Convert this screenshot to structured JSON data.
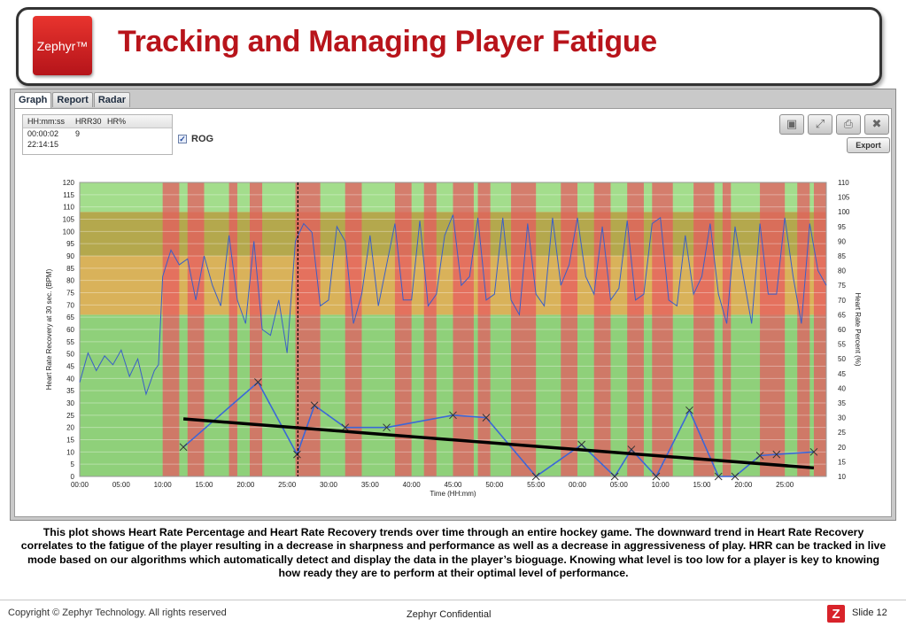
{
  "slide": {
    "title": "Tracking and Managing Player Fatigue",
    "logo_text": "Zephyr™",
    "caption": "This plot shows Heart Rate Percentage and Heart Rate Recovery trends over time through an entire hockey game.  The downward trend in Heart Rate Recovery correlates to the fatigue of the player resulting in a decrease in sharpness and performance as well as a decrease in aggressiveness of play.  HRR can be tracked in live mode based on our algorithms which automatically detect and display the data in the player’s bioguage.  Knowing what level is too low for a player is key to knowing how ready they are to perform at their optimal level of performance."
  },
  "footer": {
    "copyright": "Copyright © Zephyr Technology.  All rights reserved",
    "confidential": "Zephyr Confidential",
    "slide_number": "Slide 12",
    "icon_letter": "Z"
  },
  "app": {
    "tabs": [
      {
        "label": "Graph",
        "active": true
      },
      {
        "label": "Report",
        "active": false
      },
      {
        "label": "Radar",
        "active": false
      }
    ],
    "readout": {
      "headers": [
        "HH:mm:ss",
        "HRR30",
        "HR%"
      ],
      "row1": {
        "time": "00:00:02",
        "hrr30": "9",
        "hr_pct": ""
      },
      "row2": {
        "time": "22:14:15"
      }
    },
    "rog_label": "ROG",
    "rog_checked": true,
    "toolbar_icons": [
      "image-icon",
      "zoom-icon",
      "print-icon",
      "close-icon"
    ],
    "export_label": "Export"
  },
  "chart_data": {
    "type": "line",
    "xlabel": "Time (HH:mm)",
    "ylabel_left": "Heart Rate Recovery at 30 sec. (BPM)",
    "ylabel_right": "Heart Rate Percent (%)",
    "x_ticks": [
      "00:00",
      "05:00",
      "10:00",
      "15:00",
      "20:00",
      "25:00",
      "30:00",
      "35:00",
      "40:00",
      "45:00",
      "50:00",
      "55:00",
      "00:00",
      "05:00",
      "10:00",
      "15:00",
      "20:00",
      "25:00"
    ],
    "x_range_minutes": [
      0,
      90
    ],
    "ylim_left": [
      0,
      120
    ],
    "y_ticks_left": [
      0,
      5,
      10,
      15,
      20,
      25,
      30,
      35,
      40,
      45,
      50,
      55,
      60,
      65,
      70,
      75,
      80,
      85,
      90,
      95,
      100,
      105,
      110,
      115,
      120
    ],
    "ylim_right": [
      10,
      110
    ],
    "y_ticks_right": [
      10,
      15,
      20,
      25,
      30,
      35,
      40,
      45,
      50,
      55,
      60,
      65,
      70,
      75,
      80,
      85,
      90,
      95,
      100,
      105,
      110
    ],
    "zones_right_pct": [
      {
        "from": 10,
        "to": 65,
        "name": "green"
      },
      {
        "from": 65,
        "to": 85,
        "name": "orange"
      },
      {
        "from": 85,
        "to": 100,
        "name": "olive"
      },
      {
        "from": 100,
        "to": 110,
        "name": "light-green"
      }
    ],
    "shifts_minutes": [
      [
        10,
        12
      ],
      [
        13,
        15
      ],
      [
        18,
        19
      ],
      [
        20.5,
        22
      ],
      [
        26,
        29
      ],
      [
        32,
        34
      ],
      [
        38,
        40
      ],
      [
        41.5,
        43
      ],
      [
        45,
        47.5
      ],
      [
        48,
        49.5
      ],
      [
        52,
        55
      ],
      [
        58,
        60
      ],
      [
        62,
        64
      ],
      [
        66,
        68
      ],
      [
        69,
        71.5
      ],
      [
        74,
        76.5
      ],
      [
        77.5,
        78.5
      ],
      [
        82,
        85
      ],
      [
        86.5,
        88
      ],
      [
        88.5,
        90
      ]
    ],
    "cursor_minute": 26.3,
    "series": [
      {
        "name": "HRR30",
        "x": [
          12.5,
          21.5,
          26.2,
          28.3,
          32,
          37,
          45,
          49,
          55,
          60.5,
          64.5,
          66.5,
          69.5,
          73.5,
          77,
          79,
          82,
          84,
          88.5
        ],
        "y": [
          12,
          38.5,
          9,
          29,
          20,
          20,
          25,
          24,
          0,
          13,
          0,
          11,
          0,
          27,
          0,
          0,
          8.5,
          9,
          10
        ]
      },
      {
        "name": "HR%",
        "x": [
          0,
          1,
          2,
          3,
          4,
          5,
          6,
          7,
          8,
          9,
          9.5,
          10,
          11,
          12,
          13,
          14,
          15,
          16,
          17,
          18,
          19,
          20,
          21,
          22,
          23,
          24,
          25,
          26,
          27,
          28,
          29,
          30,
          31,
          32,
          33,
          34,
          35,
          36,
          37,
          38,
          39,
          40,
          41,
          42,
          43,
          44,
          45,
          46,
          47,
          48,
          49,
          50,
          51,
          52,
          53,
          54,
          55,
          56,
          57,
          58,
          59,
          60,
          61,
          62,
          63,
          64,
          65,
          66,
          67,
          68,
          69,
          70,
          71,
          72,
          73,
          74,
          75,
          76,
          77,
          78,
          79,
          80,
          81,
          82,
          83,
          84,
          85,
          86,
          87,
          88,
          89,
          90
        ],
        "y": [
          42,
          52,
          46,
          51,
          48,
          53,
          44,
          50,
          38,
          46,
          48,
          78,
          87,
          82,
          84,
          70,
          85,
          75,
          68,
          92,
          70,
          62,
          90,
          60,
          58,
          70,
          52,
          90,
          96,
          93,
          68,
          70,
          95,
          90,
          62,
          72,
          92,
          68,
          82,
          96,
          70,
          70,
          97,
          68,
          72,
          92,
          99,
          75,
          78,
          98,
          70,
          72,
          98,
          70,
          65,
          96,
          72,
          68,
          98,
          75,
          82,
          98,
          78,
          72,
          95,
          70,
          74,
          97,
          70,
          72,
          96,
          98,
          70,
          68,
          92,
          72,
          78,
          96,
          72,
          62,
          95,
          78,
          62,
          96,
          72,
          72,
          98,
          78,
          62,
          96,
          80,
          75
        ]
      }
    ],
    "trend_line": {
      "x": [
        12.5,
        88.5
      ],
      "y": [
        23.5,
        3.5
      ]
    },
    "grid": true
  }
}
